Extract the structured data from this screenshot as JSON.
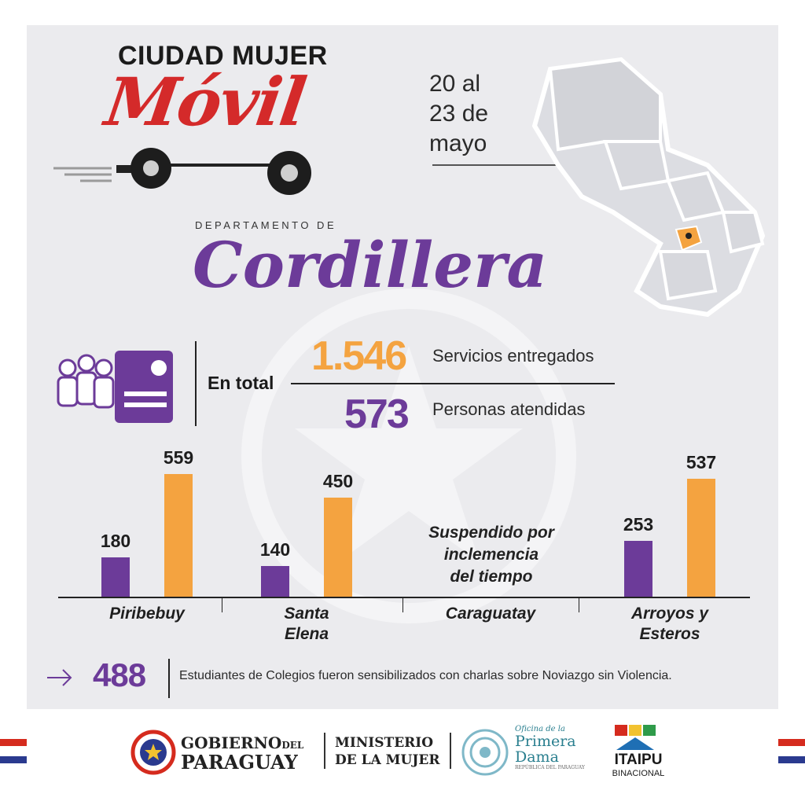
{
  "brand": {
    "word1": "CIUDAD",
    "word2": "MUJER",
    "script": "Móvil"
  },
  "dates": "20 al\n23 de\nmayo",
  "department": {
    "prefix": "DEPARTAMENTO DE",
    "name": "Cordillera"
  },
  "totals": {
    "label": "En total",
    "services_value": "1.546",
    "services_label": "Servicios entregados",
    "people_value": "573",
    "people_label": "Personas atendidas"
  },
  "chart_data": {
    "type": "bar",
    "categories": [
      "Piribebuy",
      "Santa Elena",
      "Caraguatay",
      "Arroyos y Esteros"
    ],
    "category_lines": [
      [
        "Piribebuy"
      ],
      [
        "Santa",
        "Elena"
      ],
      [
        "Caraguatay"
      ],
      [
        "Arroyos y",
        "Esteros"
      ]
    ],
    "series": [
      {
        "values": [
          180,
          140,
          null,
          253
        ],
        "color": "#6c3b99"
      },
      {
        "values": [
          559,
          450,
          null,
          537
        ],
        "color": "#f4a340"
      }
    ],
    "annotations": [
      "Suspendido por",
      "inclemencia",
      "del tiempo"
    ],
    "ylim": [
      0,
      560
    ]
  },
  "footer": {
    "students_value": "488",
    "students_text": "Estudiantes de Colegios fueron sensibilizados con charlas sobre Noviazgo sin Violencia."
  },
  "logos": {
    "gobierno_line1": "GOBIERNO",
    "gobierno_del": "DEL",
    "gobierno_line2": "PARAGUAY",
    "ministerio_line1": "MINISTERIO",
    "ministerio_line2": "DE LA MUJER",
    "primera_small": "Oficina de la",
    "primera_line1": "Primera",
    "primera_line2": "Dama",
    "primera_sub": "REPÚBLICA DEL PARAGUAY",
    "itaipu_line1": "ITAIPU",
    "itaipu_line2": "BINACIONAL"
  },
  "colors": {
    "purple": "#6c3b99",
    "orange": "#f4a340",
    "red": "#d42a2a",
    "blue": "#2a3a8f"
  }
}
